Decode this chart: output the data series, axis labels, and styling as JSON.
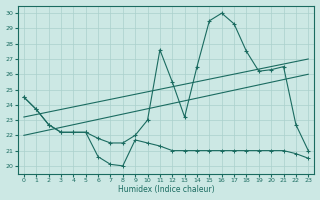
{
  "xlabel": "Humidex (Indice chaleur)",
  "xlim": [
    -0.5,
    23.5
  ],
  "ylim": [
    19.5,
    30.5
  ],
  "yticks": [
    20,
    21,
    22,
    23,
    24,
    25,
    26,
    27,
    28,
    29,
    30
  ],
  "xticks": [
    0,
    1,
    2,
    3,
    4,
    5,
    6,
    7,
    8,
    9,
    10,
    11,
    12,
    13,
    14,
    15,
    16,
    17,
    18,
    19,
    20,
    21,
    22,
    23
  ],
  "background_color": "#cce8e4",
  "grid_color": "#aad0cc",
  "line_color": "#1a6b60",
  "line1_x": [
    0,
    1,
    2,
    3,
    4,
    5,
    6,
    7,
    8,
    9,
    10,
    11,
    12,
    13,
    14,
    15,
    16,
    17,
    18,
    19,
    20,
    21,
    22,
    23
  ],
  "line1_y": [
    24.5,
    23.7,
    22.7,
    22.2,
    22.2,
    22.2,
    21.8,
    21.5,
    21.5,
    22.0,
    23.0,
    27.6,
    25.5,
    23.2,
    26.5,
    29.5,
    30.0,
    29.3,
    27.5,
    26.2,
    26.3,
    26.5,
    22.7,
    21.0
  ],
  "line2_x": [
    0,
    23
  ],
  "line2_y": [
    23.2,
    27.0
  ],
  "line3_x": [
    0,
    23
  ],
  "line3_y": [
    22.0,
    26.0
  ],
  "line4_x": [
    0,
    1,
    2,
    3,
    4,
    5,
    6,
    7,
    8,
    9,
    10,
    11,
    12,
    13,
    14,
    15,
    16,
    17,
    18,
    19,
    20,
    21,
    22,
    23
  ],
  "line4_y": [
    24.5,
    23.7,
    22.7,
    22.2,
    22.2,
    22.2,
    20.6,
    20.1,
    20.0,
    21.7,
    21.5,
    21.3,
    21.0,
    21.0,
    21.0,
    21.0,
    21.0,
    21.0,
    21.0,
    21.0,
    21.0,
    21.0,
    20.8,
    20.5
  ]
}
